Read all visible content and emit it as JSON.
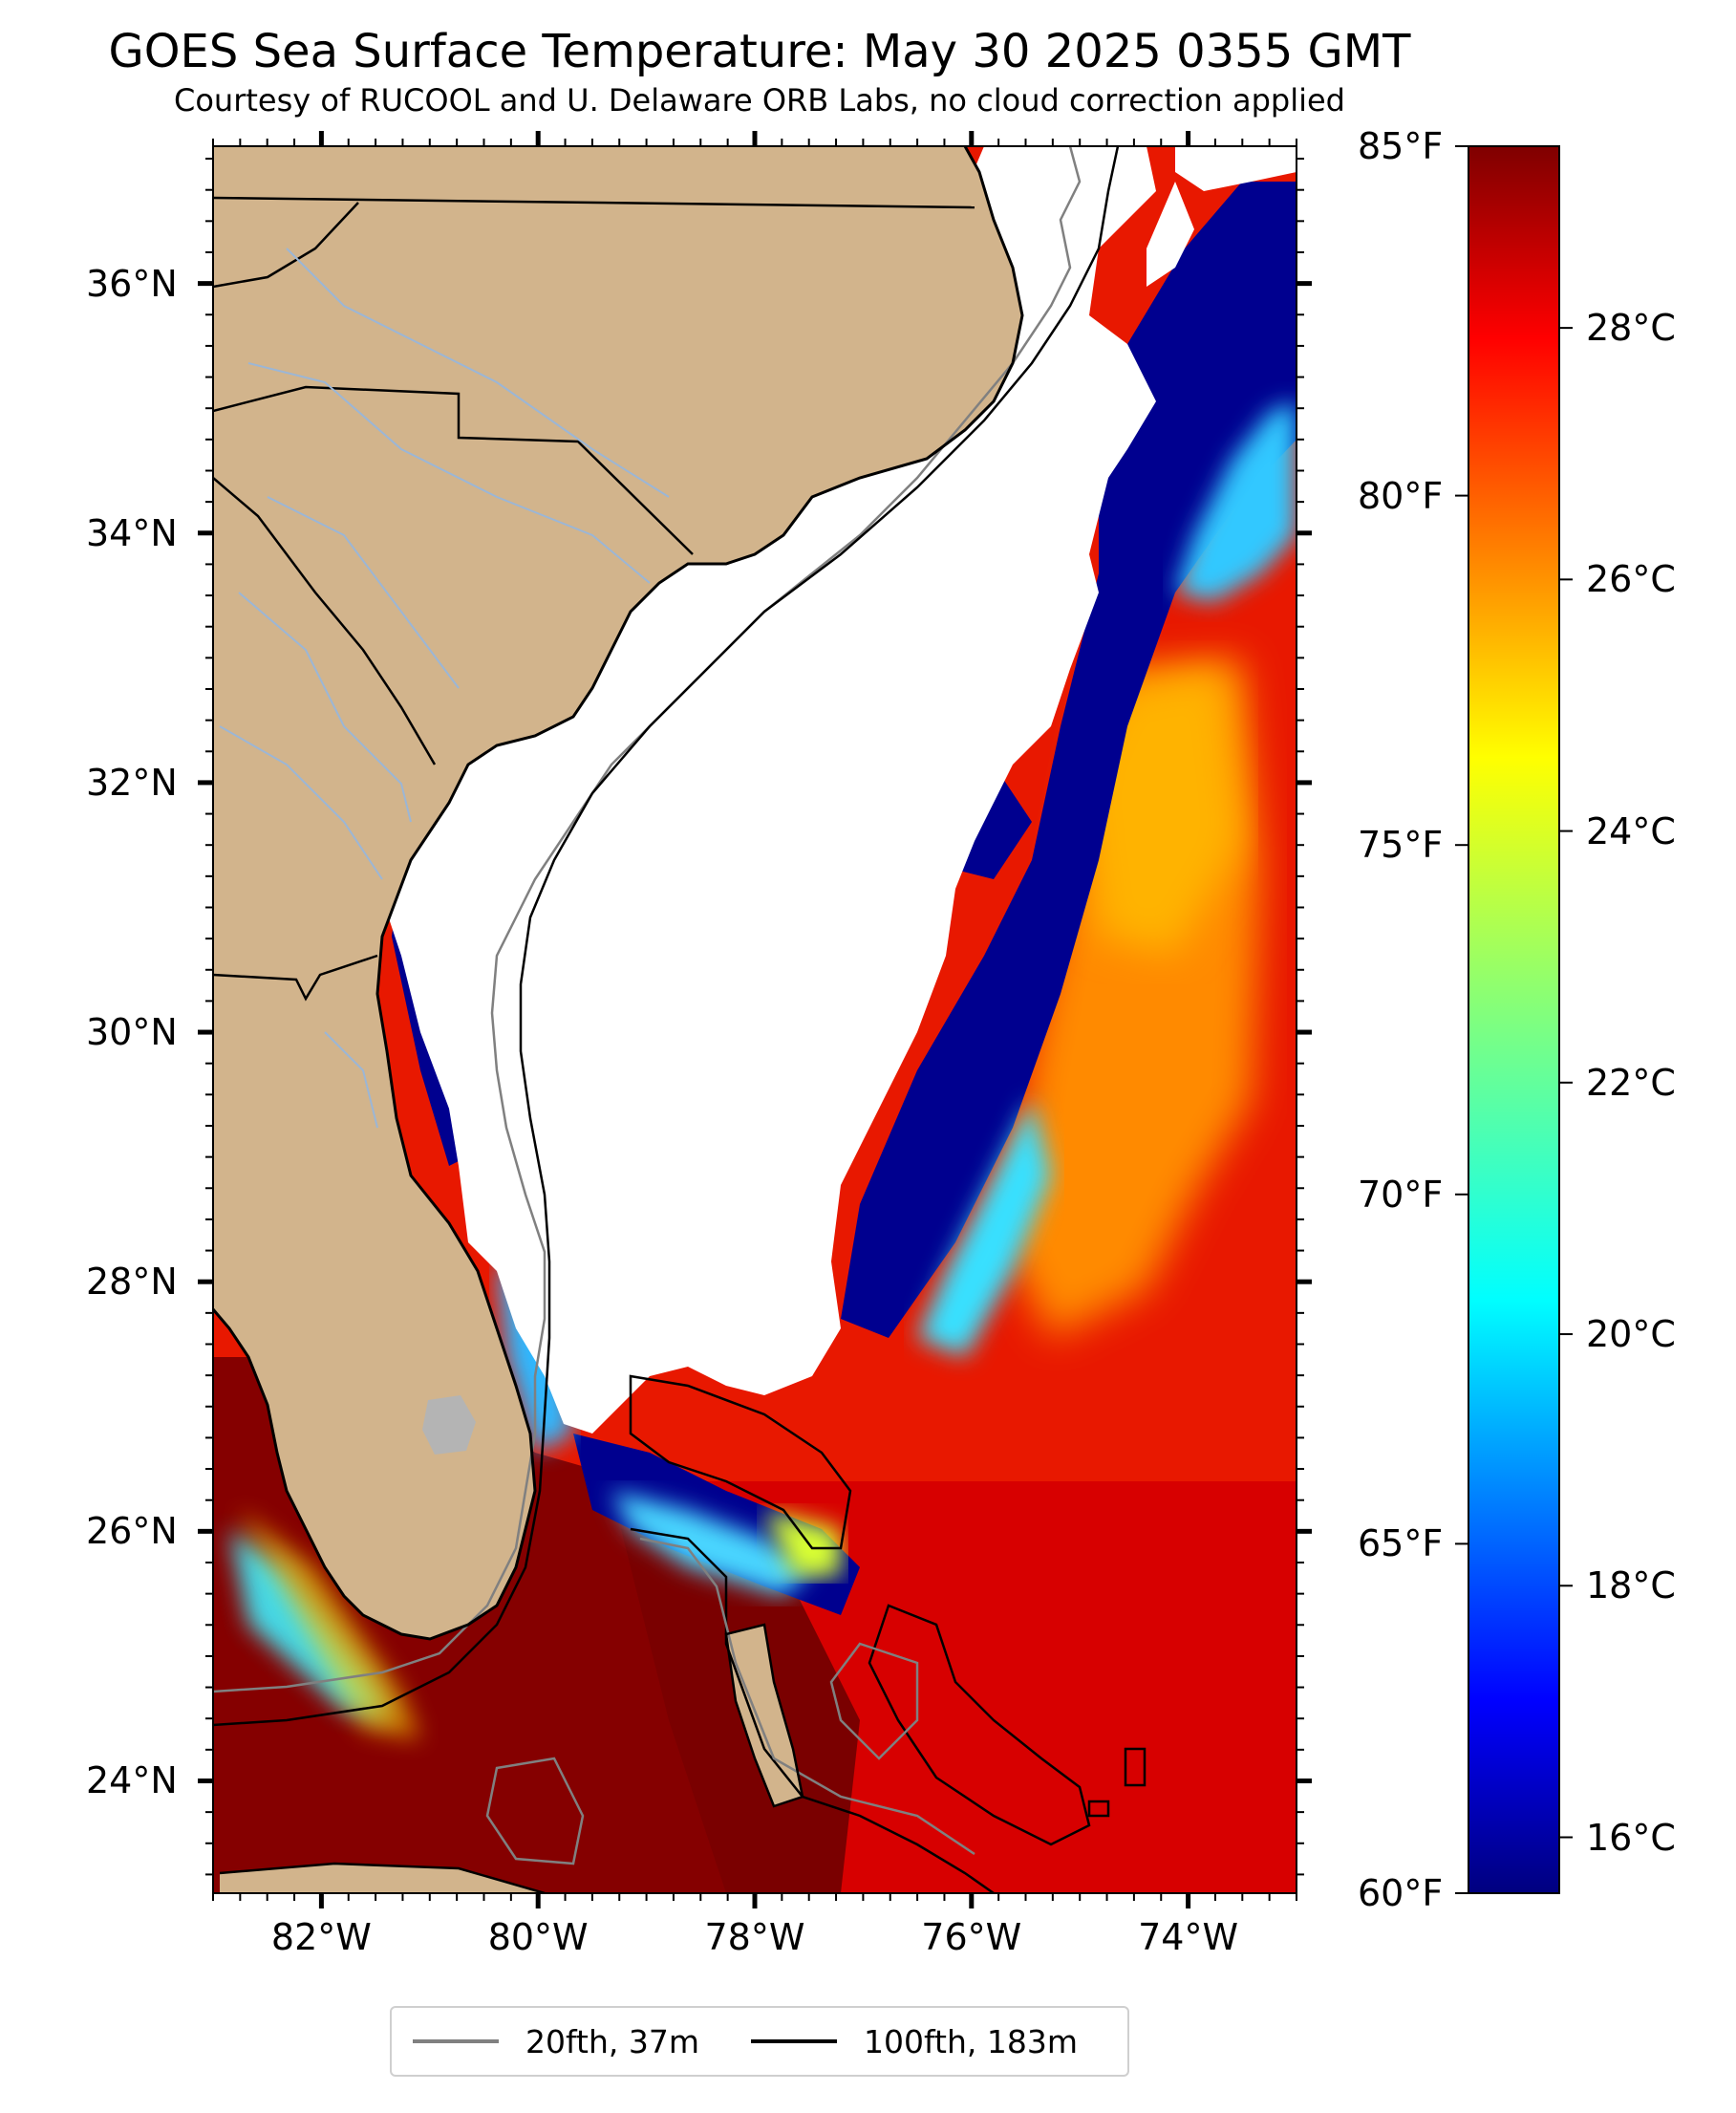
{
  "title": "GOES Sea Surface Temperature: May 30 2025 0355 GMT",
  "subtitle": "Courtesy of RUCOOL and U. Delaware ORB Labs, no cloud correction applied",
  "map": {
    "lon_range": [
      -83,
      -73
    ],
    "lat_range": [
      23.1,
      37.1
    ],
    "lat_labels": [
      {
        "value": 36,
        "text": "36°N"
      },
      {
        "value": 34,
        "text": "34°N"
      },
      {
        "value": 32,
        "text": "32°N"
      },
      {
        "value": 30,
        "text": "30°N"
      },
      {
        "value": 28,
        "text": "28°N"
      },
      {
        "value": 26,
        "text": "26°N"
      },
      {
        "value": 24,
        "text": "24°N"
      }
    ],
    "lon_labels": [
      {
        "value": -82,
        "text": "82°W"
      },
      {
        "value": -80,
        "text": "80°W"
      },
      {
        "value": -78,
        "text": "78°W"
      },
      {
        "value": -76,
        "text": "76°W"
      },
      {
        "value": -74,
        "text": "74°W"
      }
    ],
    "colors": {
      "land": "#d2b48c",
      "cloud": "#ffffff",
      "contour_20fth": "#808080",
      "contour_100fth": "#000000",
      "rivers": "#9bb6d6"
    }
  },
  "colorbar": {
    "colormap": "jet",
    "range_f": [
      60,
      85
    ],
    "fahrenheit_ticks": [
      {
        "value": 85,
        "text": "85°F"
      },
      {
        "value": 80,
        "text": "80°F"
      },
      {
        "value": 75,
        "text": "75°F"
      },
      {
        "value": 70,
        "text": "70°F"
      },
      {
        "value": 65,
        "text": "65°F"
      },
      {
        "value": 60,
        "text": "60°F"
      }
    ],
    "celsius_ticks": [
      {
        "value": 28,
        "text": "28°C"
      },
      {
        "value": 26,
        "text": "26°C"
      },
      {
        "value": 24,
        "text": "24°C"
      },
      {
        "value": 22,
        "text": "22°C"
      },
      {
        "value": 20,
        "text": "20°C"
      },
      {
        "value": 18,
        "text": "18°C"
      },
      {
        "value": 16,
        "text": "16°C"
      }
    ]
  },
  "legend": {
    "items": [
      {
        "label": "20fth, 37m",
        "color": "#808080"
      },
      {
        "label": "100fth, 183m",
        "color": "#000000"
      }
    ]
  }
}
